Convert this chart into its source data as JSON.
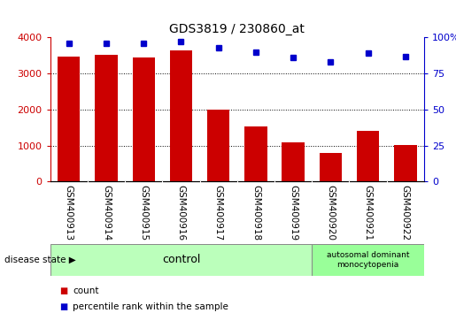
{
  "title": "GDS3819 / 230860_at",
  "samples": [
    "GSM400913",
    "GSM400914",
    "GSM400915",
    "GSM400916",
    "GSM400917",
    "GSM400918",
    "GSM400919",
    "GSM400920",
    "GSM400921",
    "GSM400922"
  ],
  "counts": [
    3480,
    3510,
    3450,
    3640,
    2000,
    1520,
    1100,
    790,
    1400,
    1020
  ],
  "percentile_ranks": [
    96,
    96,
    96,
    97,
    93,
    90,
    86,
    83,
    89,
    87
  ],
  "bar_color": "#cc0000",
  "dot_color": "#0000cc",
  "ylim_left": [
    0,
    4000
  ],
  "ylim_right": [
    0,
    100
  ],
  "yticks_left": [
    0,
    1000,
    2000,
    3000,
    4000
  ],
  "yticks_right": [
    0,
    25,
    50,
    75,
    100
  ],
  "ytick_labels_right": [
    "0",
    "25",
    "50",
    "75",
    "100%"
  ],
  "grid_values": [
    1000,
    2000,
    3000
  ],
  "control_samples": 7,
  "disease_samples": 3,
  "control_label": "control",
  "disease_label": "autosomal dominant\nmonocytopenia",
  "disease_state_label": "disease state",
  "legend_count_label": "count",
  "legend_percentile_label": "percentile rank within the sample",
  "control_color": "#bbffbb",
  "disease_color": "#99ff99",
  "xticklabel_bg": "#d8d8d8",
  "background_color": "#ffffff",
  "plot_bg_color": "#ffffff"
}
